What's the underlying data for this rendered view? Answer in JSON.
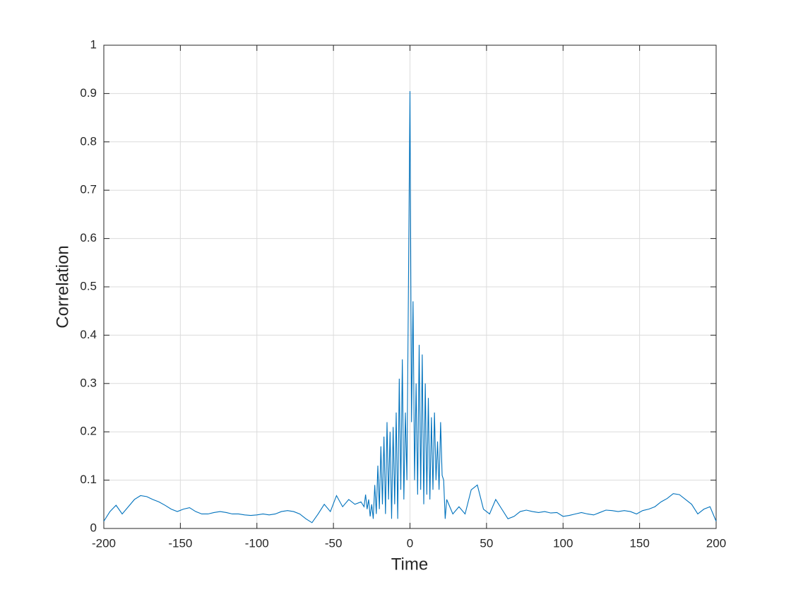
{
  "chart_data": {
    "type": "line",
    "xlabel": "Time",
    "ylabel": "Correlation",
    "color": "#0072bd",
    "grid": true,
    "xlim": [
      -200,
      200
    ],
    "ylim": [
      0,
      1
    ],
    "xticks": [
      -200,
      -150,
      -100,
      -50,
      0,
      50,
      100,
      150,
      200
    ],
    "yticks": [
      0,
      0.1,
      0.2,
      0.3,
      0.4,
      0.5,
      0.6,
      0.7,
      0.8,
      0.9,
      1
    ],
    "x": [
      -200,
      -196,
      -192,
      -188,
      -184,
      -180,
      -176,
      -172,
      -168,
      -164,
      -160,
      -156,
      -152,
      -148,
      -144,
      -140,
      -136,
      -132,
      -128,
      -124,
      -120,
      -116,
      -112,
      -108,
      -104,
      -100,
      -96,
      -92,
      -88,
      -84,
      -80,
      -76,
      -72,
      -68,
      -64,
      -60,
      -56,
      -52,
      -48,
      -44,
      -40,
      -36,
      -32,
      -30,
      -29,
      -28,
      -27,
      -26,
      -25,
      -24,
      -23,
      -22,
      -21,
      -20,
      -19,
      -18,
      -17,
      -16,
      -15,
      -14,
      -13,
      -12,
      -11,
      -10,
      -9,
      -8,
      -7,
      -6,
      -5,
      -4,
      -3,
      -2,
      -1,
      0,
      1,
      2,
      3,
      4,
      5,
      6,
      7,
      8,
      9,
      10,
      11,
      12,
      13,
      14,
      15,
      16,
      17,
      18,
      19,
      20,
      21,
      22,
      23,
      24,
      28,
      32,
      36,
      40,
      44,
      48,
      52,
      56,
      60,
      64,
      68,
      72,
      76,
      80,
      84,
      88,
      92,
      96,
      100,
      104,
      108,
      112,
      116,
      120,
      124,
      128,
      132,
      136,
      140,
      144,
      148,
      152,
      156,
      160,
      164,
      168,
      172,
      176,
      180,
      184,
      188,
      192,
      196,
      200
    ],
    "values": [
      0.015,
      0.035,
      0.048,
      0.03,
      0.045,
      0.06,
      0.068,
      0.066,
      0.06,
      0.055,
      0.048,
      0.04,
      0.035,
      0.04,
      0.043,
      0.035,
      0.03,
      0.03,
      0.033,
      0.035,
      0.033,
      0.03,
      0.03,
      0.028,
      0.027,
      0.028,
      0.03,
      0.028,
      0.03,
      0.035,
      0.037,
      0.035,
      0.03,
      0.02,
      0.012,
      0.03,
      0.05,
      0.035,
      0.068,
      0.045,
      0.06,
      0.05,
      0.055,
      0.045,
      0.07,
      0.04,
      0.06,
      0.025,
      0.05,
      0.02,
      0.09,
      0.03,
      0.13,
      0.04,
      0.17,
      0.05,
      0.19,
      0.03,
      0.22,
      0.06,
      0.2,
      0.02,
      0.21,
      0.05,
      0.24,
      0.02,
      0.31,
      0.08,
      0.35,
      0.06,
      0.24,
      0.1,
      0.5,
      0.905,
      0.22,
      0.47,
      0.1,
      0.3,
      0.07,
      0.38,
      0.08,
      0.36,
      0.05,
      0.3,
      0.07,
      0.27,
      0.06,
      0.23,
      0.08,
      0.24,
      0.1,
      0.18,
      0.08,
      0.22,
      0.11,
      0.1,
      0.02,
      0.06,
      0.03,
      0.045,
      0.03,
      0.08,
      0.09,
      0.04,
      0.03,
      0.06,
      0.04,
      0.02,
      0.025,
      0.035,
      0.038,
      0.035,
      0.033,
      0.035,
      0.032,
      0.033,
      0.025,
      0.027,
      0.03,
      0.033,
      0.03,
      0.028,
      0.033,
      0.038,
      0.037,
      0.035,
      0.037,
      0.035,
      0.03,
      0.037,
      0.04,
      0.045,
      0.055,
      0.062,
      0.072,
      0.07,
      0.06,
      0.05,
      0.03,
      0.04,
      0.045,
      0.015
    ]
  }
}
